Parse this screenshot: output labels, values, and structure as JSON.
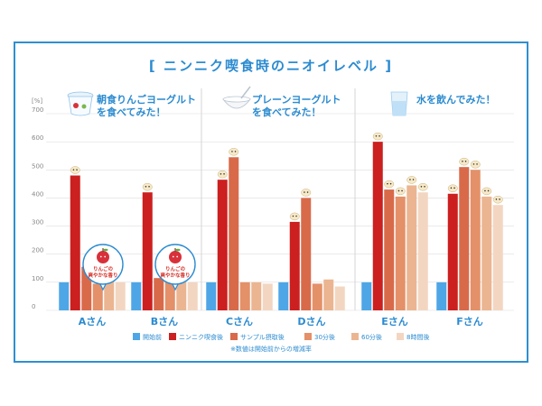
{
  "chart_data": {
    "type": "bar",
    "title": "[ ニンニク喫食時のニオイレベル ]",
    "ylabel": "[%]",
    "ylim": [
      0,
      700
    ],
    "yticks": [
      0,
      100,
      200,
      300,
      400,
      500,
      600,
      700
    ],
    "grid": true,
    "legend_position": "bottom",
    "note": "※数値は開始前からの増減率",
    "groups": [
      {
        "title_line1": "朝食りんごヨーグルト",
        "title_line2": "を食べてみた！",
        "icon": "yogurt-cup-icon"
      },
      {
        "title_line1": "プレーンヨーグルト",
        "title_line2": "を食べてみた！",
        "icon": "plain-yogurt-bowl-icon"
      },
      {
        "title_line1": "水を飲んでみた！",
        "title_line2": "",
        "icon": "water-glass-icon"
      }
    ],
    "categories": [
      "Aさん",
      "Bさん",
      "Cさん",
      "Dさん",
      "Eさん",
      "Fさん"
    ],
    "series": [
      {
        "name": "開始前",
        "color": "#4ea6e6",
        "values": [
          100,
          100,
          100,
          100,
          100,
          100
        ]
      },
      {
        "name": "ニンニク喫食後",
        "color": "#cc1f1f",
        "values": [
          480,
          420,
          465,
          315,
          600,
          415
        ]
      },
      {
        "name": "サンプル摂取後",
        "color": "#d86a4a",
        "values": [
          155,
          115,
          545,
          400,
          430,
          510
        ]
      },
      {
        "name": "30分後",
        "color": "#e49068",
        "values": [
          95,
          105,
          100,
          95,
          405,
          500
        ]
      },
      {
        "name": "60分後",
        "color": "#ebb592",
        "values": [
          115,
          100,
          100,
          110,
          445,
          405
        ]
      },
      {
        "name": "8時間後",
        "color": "#f3d6c1",
        "values": [
          100,
          100,
          95,
          85,
          420,
          375
        ]
      }
    ],
    "annotations": [
      {
        "category_index": 0,
        "text_line1": "りんごの",
        "text_line2": "爽やかな香り",
        "icon": "apple-icon"
      },
      {
        "category_index": 1,
        "text_line1": "りんごの",
        "text_line2": "爽やかな香り",
        "icon": "apple-icon"
      }
    ],
    "colors": {
      "accent": "#2b8bd0",
      "frame": "#2f8fd0",
      "grid": "#dddddd",
      "divider": "#cccccc"
    }
  }
}
